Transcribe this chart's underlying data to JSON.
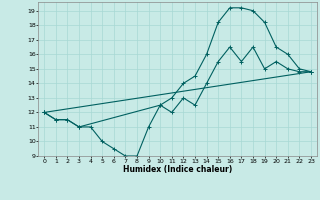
{
  "xlabel": "Humidex (Indice chaleur)",
  "xlim": [
    -0.5,
    23.5
  ],
  "ylim": [
    9,
    19.6
  ],
  "yticks": [
    9,
    10,
    11,
    12,
    13,
    14,
    15,
    16,
    17,
    18,
    19
  ],
  "xticks": [
    0,
    1,
    2,
    3,
    4,
    5,
    6,
    7,
    8,
    9,
    10,
    11,
    12,
    13,
    14,
    15,
    16,
    17,
    18,
    19,
    20,
    21,
    22,
    23
  ],
  "bg_color": "#c8eae6",
  "grid_color": "#a8d8d4",
  "line_color": "#006060",
  "line1_x": [
    0,
    1,
    2,
    3,
    4,
    5,
    6,
    7,
    8,
    9,
    10,
    11,
    12,
    13,
    14,
    15,
    16,
    17,
    18,
    19,
    20,
    21,
    22,
    23
  ],
  "line1_y": [
    12,
    11.5,
    11.5,
    11,
    11,
    10,
    9.5,
    9,
    9,
    11,
    12.5,
    12.0,
    13.0,
    12.5,
    14.0,
    15.5,
    16.5,
    15.5,
    16.5,
    15.0,
    15.5,
    15.0,
    14.8,
    14.8
  ],
  "line2_x": [
    0,
    1,
    2,
    3,
    10,
    11,
    12,
    13,
    14,
    15,
    16,
    17,
    18,
    19,
    20,
    21,
    22,
    23
  ],
  "line2_y": [
    12,
    11.5,
    11.5,
    11,
    12.5,
    13.0,
    14.0,
    14.5,
    16.0,
    18.2,
    19.2,
    19.2,
    19.0,
    18.2,
    16.5,
    16.0,
    15.0,
    14.8
  ],
  "line3_x": [
    0,
    23
  ],
  "line3_y": [
    12,
    14.8
  ]
}
